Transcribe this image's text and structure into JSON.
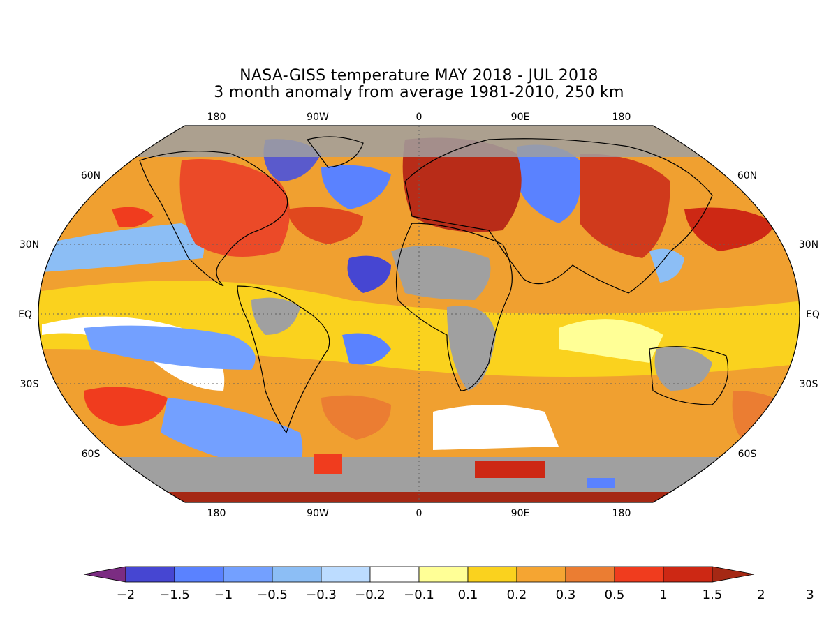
{
  "title": {
    "line1": "NASA-GISS temperature MAY 2018 - JUL 2018",
    "line2": "3 month anomaly from average 1981-2010, 250 km"
  },
  "lon_labels": [
    "180",
    "90W",
    "0",
    "90E",
    "180"
  ],
  "lat_labels": [
    "60N",
    "30N",
    "EQ",
    "30S",
    "60S"
  ],
  "colorbar": {
    "colors": [
      "#7b2c82",
      "#4646d2",
      "#5a82ff",
      "#73a0ff",
      "#8cbef5",
      "#bcdcff",
      "#ffffff",
      "#ffff96",
      "#fad21e",
      "#f5a532",
      "#eb7d32",
      "#f03c1e",
      "#cd2814",
      "#a52814"
    ],
    "labels": [
      "-2",
      "-1.5",
      "-1",
      "-0.5",
      "-0.3",
      "-0.2",
      "-0.1",
      "0.1",
      "0.2",
      "0.3",
      "0.5",
      "1",
      "1.5",
      "2",
      "3"
    ],
    "no_data_color": "#a0a0a0"
  },
  "map_regions": [
    {
      "name": "north-america",
      "color": "#eb4a28"
    },
    {
      "name": "europe",
      "color": "#b82c18"
    },
    {
      "name": "siberia",
      "color": "#5a82ff"
    },
    {
      "name": "east-asia",
      "color": "#d03a1c"
    },
    {
      "name": "tropical-pacific",
      "color": "#73a0ff"
    },
    {
      "name": "north-atlantic",
      "color": "#5a82ff"
    },
    {
      "name": "south-pacific",
      "color": "#f03c1e"
    },
    {
      "name": "southern-ocean",
      "color": "#5a82ff"
    },
    {
      "name": "antarctica",
      "color": "#a52814"
    }
  ]
}
